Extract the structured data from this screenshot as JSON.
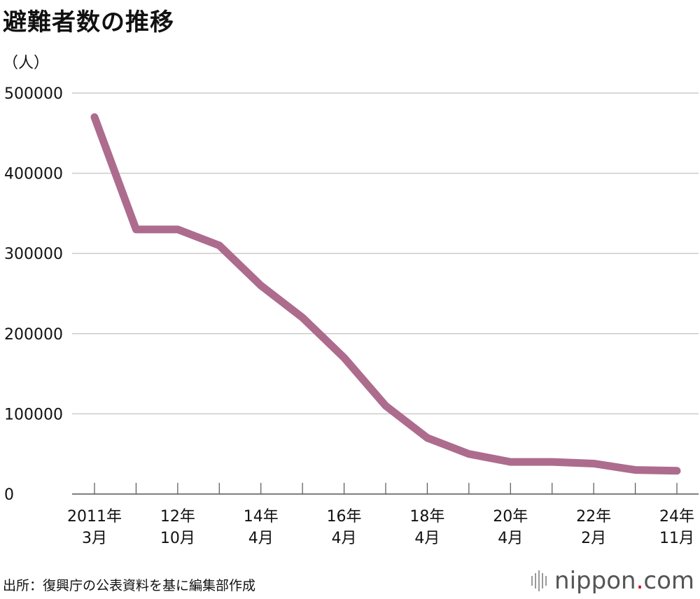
{
  "title": "避難者数の推移",
  "unit_label": "（人）",
  "source": "出所：復興庁の公表資料を基に編集部作成",
  "brand": {
    "name": "nippon",
    "dot": ".",
    "tld": "com"
  },
  "colors": {
    "line": "#ad6c8d",
    "grid": "#cccccc",
    "axis": "#555555",
    "text": "#111111",
    "brand_dot": "#d0021b"
  },
  "chart_data": {
    "type": "line",
    "title": "避難者数の推移",
    "ylabel": "（人）",
    "xlabel": "",
    "ylim": [
      0,
      500000
    ],
    "yticks": [
      0,
      100000,
      200000,
      300000,
      400000,
      500000
    ],
    "grid": true,
    "categories": [
      "2011年3月",
      "",
      "12年10月",
      "",
      "14年4月",
      "",
      "16年4月",
      "",
      "18年4月",
      "",
      "20年4月",
      "",
      "22年2月",
      "",
      "24年11月"
    ],
    "x_tick_labels": [
      {
        "index": 0,
        "lines": [
          "2011年",
          "3月"
        ]
      },
      {
        "index": 2,
        "lines": [
          "12年",
          "10月"
        ]
      },
      {
        "index": 4,
        "lines": [
          "14年",
          "4月"
        ]
      },
      {
        "index": 6,
        "lines": [
          "16年",
          "4月"
        ]
      },
      {
        "index": 8,
        "lines": [
          "18年",
          "4月"
        ]
      },
      {
        "index": 10,
        "lines": [
          "20年",
          "4月"
        ]
      },
      {
        "index": 12,
        "lines": [
          "22年",
          "2月"
        ]
      },
      {
        "index": 14,
        "lines": [
          "24年",
          "11月"
        ]
      }
    ],
    "series": [
      {
        "values": [
          470000,
          330000,
          330000,
          310000,
          260000,
          220000,
          170000,
          110000,
          70000,
          50000,
          40000,
          40000,
          38000,
          30000,
          29000
        ]
      }
    ]
  }
}
